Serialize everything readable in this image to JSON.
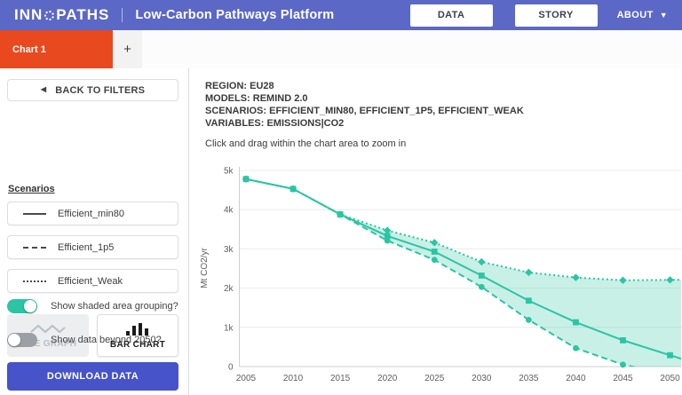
{
  "header": {
    "logo_pre": "INN",
    "logo_post": "PATHS",
    "title": "Low-Carbon Pathways Platform",
    "data_button": "DATA",
    "story_button": "STORY",
    "about_label": "ABOUT"
  },
  "tabs": {
    "active_tab": "Chart 1",
    "add_tab": "+"
  },
  "sidebar": {
    "back_button": "BACK TO FILTERS",
    "scenarios_heading": "Scenarios",
    "scenarios": [
      {
        "label": "Efficient_min80",
        "line_style": "solid"
      },
      {
        "label": "Efficient_1p5",
        "line_style": "dashed"
      },
      {
        "label": "Efficient_Weak",
        "line_style": "dotted"
      }
    ],
    "line_graph_button": "LINE GRAPH",
    "bar_chart_button": "BAR CHART",
    "active_chart_type": "line",
    "toggles": [
      {
        "label": "Show shaded area grouping?",
        "state": true
      },
      {
        "label": "Show data beyond 2050?",
        "state": false
      }
    ],
    "download_button": "DOWNLOAD DATA"
  },
  "main": {
    "meta_lines": [
      "REGION: EU28",
      "MODELS: REMIND 2.0",
      "SCENARIOS: EFFICIENT_MIN80, EFFICIENT_1P5, EFFICIENT_WEAK",
      "VARIABLES: EMISSIONS|CO2"
    ],
    "hint": "Click and drag within the chart area to zoom in"
  },
  "chart_data": {
    "type": "line",
    "x": [
      2005,
      2010,
      2015,
      2020,
      2025,
      2030,
      2035,
      2040,
      2045,
      2050
    ],
    "series": [
      {
        "name": "Efficient_min80",
        "style": "solid",
        "marker": "square",
        "values": [
          4780,
          4530,
          3880,
          3330,
          2930,
          2320,
          1680,
          1130,
          670,
          290
        ]
      },
      {
        "name": "Efficient_1p5",
        "style": "dashed",
        "marker": "circle",
        "values": [
          4780,
          4530,
          3880,
          3210,
          2720,
          2030,
          1190,
          470,
          50,
          -200
        ]
      },
      {
        "name": "Efficient_Weak",
        "style": "dotted",
        "marker": "diamond",
        "values": [
          4780,
          4530,
          3880,
          3470,
          3160,
          2670,
          2400,
          2270,
          2200,
          2210
        ]
      }
    ],
    "shaded_band": {
      "upper": "Efficient_Weak",
      "lower": "Efficient_1p5"
    },
    "ylabel": "Mt CO2/yr",
    "ylim": [
      0,
      5000
    ],
    "yticks": [
      "0",
      "1k",
      "2k",
      "3k",
      "4k",
      "5k"
    ],
    "grid": true,
    "legend_position": "sidebar"
  },
  "icons": {
    "logo_o": "dotted-circle",
    "about_caret": "caret-down",
    "back": "left-triangle",
    "add_tab": "plus",
    "line_graph": "zigzag-line",
    "bar_chart": "bars"
  },
  "colors": {
    "header_bg": "#5b68c5",
    "active_tab_bg": "#e8491f",
    "series_teal": "#2bc5a4",
    "band_fill": "rgba(43,197,164,0.26)",
    "download_bg": "#4753c8",
    "toggle_on": "#2bc5a4",
    "toggle_off": "#9aa0a6"
  }
}
